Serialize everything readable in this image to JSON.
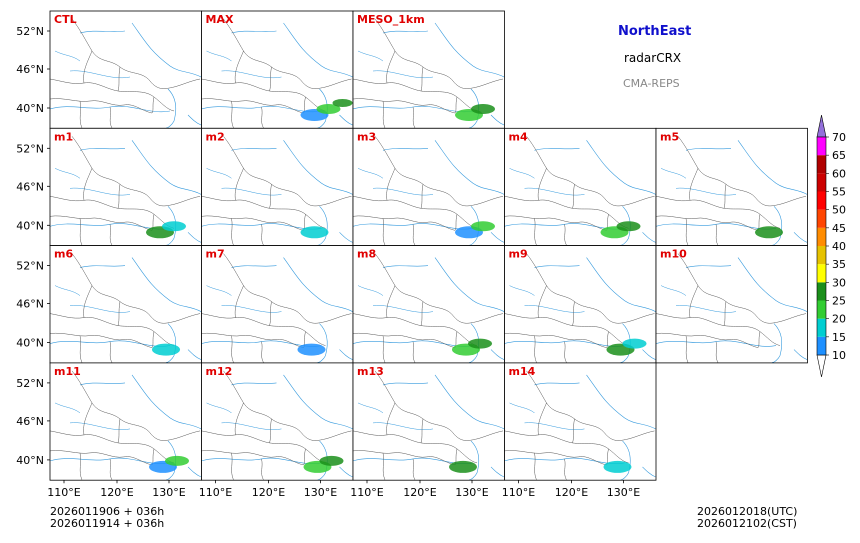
{
  "chart_data": {
    "type": "heatmap",
    "title": "",
    "region": "NorthEast",
    "product": "radarCRX",
    "system": "CMA-REPS",
    "panels": [
      "CTL",
      "MAX",
      "MESO_1km",
      "m1",
      "m2",
      "m3",
      "m4",
      "m5",
      "m6",
      "m7",
      "m8",
      "m9",
      "m10",
      "m11",
      "m12",
      "m13",
      "m14"
    ],
    "lat_ticks": [
      "52°N",
      "46°N",
      "40°N"
    ],
    "lon_ticks": [
      "110°E",
      "120°E",
      "130°E"
    ],
    "colorbar": {
      "levels": [
        "10",
        "15",
        "20",
        "25",
        "30",
        "35",
        "40",
        "45",
        "50",
        "55",
        "60",
        "65",
        "70"
      ],
      "colors": [
        "#1e90ff",
        "#00ced1",
        "#32cd32",
        "#1b8f1b",
        "#ffff00",
        "#e6c200",
        "#ff8c00",
        "#ff4500",
        "#ff0000",
        "#cc0000",
        "#b00000",
        "#ff00ff",
        "#9400d3"
      ],
      "top_color": "#9370db"
    },
    "init_utc": "2026011906  +  036h",
    "init_cst": "2026011914  +  036h",
    "valid_utc": "2026012018(UTC)",
    "valid_cst": "2026012102(CST)",
    "precip_blobs": {
      "CTL": 0,
      "MAX": 3,
      "MESO_1km": 2,
      "m1": 2,
      "m2": 1,
      "m3": 2,
      "m4": 2,
      "m5": 1,
      "m6": 1,
      "m7": 1,
      "m8": 2,
      "m9": 2,
      "m10": 0,
      "m11": 2,
      "m12": 2,
      "m13": 1,
      "m14": 1
    }
  }
}
